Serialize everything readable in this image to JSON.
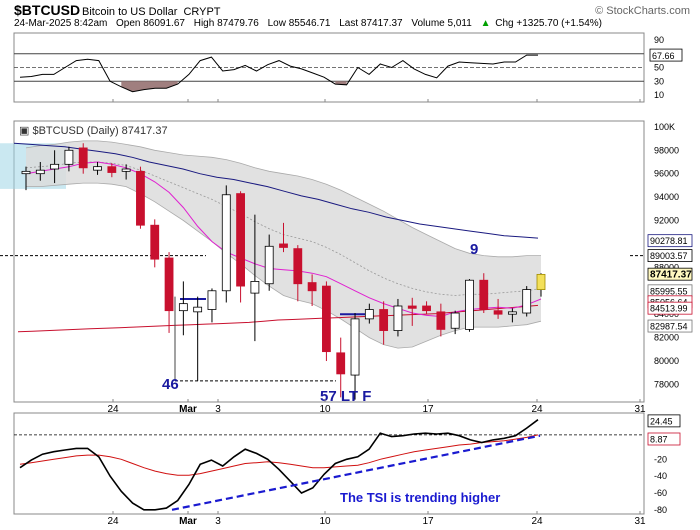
{
  "header": {
    "symbol": "$BTCUSD",
    "name": "Bitcoin to US Dollar",
    "exchange": "CRYPT",
    "watermark": "© StockCharts.com",
    "date_time": "24-Mar-2025 8:42am",
    "open": "Open 86091.67",
    "high": "High 87479.76",
    "low": "Low 85546.71",
    "last": "Last 87417.37",
    "volume": "Volume 5,011",
    "chg": "Chg +1325.70 (+1.54%)",
    "chg_arrow": "▲",
    "chg_color": "#00a000"
  },
  "chart_data": [
    {
      "type": "line",
      "panel": "momentum-oscillator",
      "ylim": [
        0,
        100
      ],
      "ticks": [
        "90",
        "70",
        "50",
        "30",
        "10"
      ],
      "ref_lines": [
        70,
        50,
        30
      ],
      "last_value": "67.66",
      "values": [
        36,
        37,
        40,
        40,
        50,
        60,
        62,
        60,
        30,
        22,
        15,
        18,
        20,
        20,
        26,
        40,
        60,
        65,
        45,
        47,
        53,
        45,
        54,
        60,
        52,
        48,
        42,
        36,
        26,
        25,
        50,
        40,
        55,
        50,
        60,
        48,
        40,
        35,
        52,
        58,
        57,
        56,
        55,
        58,
        58,
        68,
        68
      ]
    },
    {
      "type": "candlestick",
      "panel": "price",
      "label": "$BTCUSD (Daily) 87417.37",
      "ylim": [
        76500,
        100500
      ],
      "ticks": [
        "100K",
        "98000",
        "96000",
        "94000",
        "92000",
        "90000",
        "88000",
        "86000",
        "84000",
        "82000",
        "80000",
        "78000"
      ],
      "x_labels": [
        "24",
        "Mar",
        "3",
        "10",
        "17",
        "24",
        "31"
      ],
      "candles": [
        {
          "o": 96000,
          "h": 96600,
          "l": 94600,
          "c": 96200
        },
        {
          "o": 96000,
          "h": 97000,
          "l": 95400,
          "c": 96300
        },
        {
          "o": 96400,
          "h": 98000,
          "l": 95200,
          "c": 96800
        },
        {
          "o": 96800,
          "h": 98300,
          "l": 96200,
          "c": 98000
        },
        {
          "o": 98200,
          "h": 98600,
          "l": 96000,
          "c": 96500
        },
        {
          "o": 96300,
          "h": 97000,
          "l": 95900,
          "c": 96600
        },
        {
          "o": 96600,
          "h": 96900,
          "l": 95700,
          "c": 96100
        },
        {
          "o": 96200,
          "h": 96800,
          "l": 95500,
          "c": 96400
        },
        {
          "o": 96200,
          "h": 96600,
          "l": 91300,
          "c": 91600
        },
        {
          "o": 91600,
          "h": 92100,
          "l": 88000,
          "c": 88700
        },
        {
          "o": 88800,
          "h": 89300,
          "l": 82400,
          "c": 84300
        },
        {
          "o": 84300,
          "h": 86800,
          "l": 82200,
          "c": 84900
        },
        {
          "o": 84200,
          "h": 85500,
          "l": 78300,
          "c": 84600
        },
        {
          "o": 84400,
          "h": 86200,
          "l": 83300,
          "c": 86000
        },
        {
          "o": 86000,
          "h": 95000,
          "l": 85000,
          "c": 94200
        },
        {
          "o": 94300,
          "h": 94500,
          "l": 85000,
          "c": 86400
        },
        {
          "o": 85800,
          "h": 92500,
          "l": 81700,
          "c": 86800
        },
        {
          "o": 86600,
          "h": 90800,
          "l": 86000,
          "c": 89800
        },
        {
          "o": 90000,
          "h": 91800,
          "l": 89300,
          "c": 89700
        },
        {
          "o": 89600,
          "h": 89900,
          "l": 85100,
          "c": 86600
        },
        {
          "o": 86700,
          "h": 87400,
          "l": 84700,
          "c": 86000
        },
        {
          "o": 86400,
          "h": 86800,
          "l": 80000,
          "c": 80800
        },
        {
          "o": 80700,
          "h": 82000,
          "l": 76900,
          "c": 78900
        },
        {
          "o": 78800,
          "h": 84100,
          "l": 76700,
          "c": 83600
        },
        {
          "o": 83600,
          "h": 84900,
          "l": 83200,
          "c": 84400
        },
        {
          "o": 84400,
          "h": 85100,
          "l": 81400,
          "c": 82600
        },
        {
          "o": 82600,
          "h": 85300,
          "l": 82100,
          "c": 84700
        },
        {
          "o": 84700,
          "h": 85400,
          "l": 83000,
          "c": 84500
        },
        {
          "o": 84700,
          "h": 85100,
          "l": 84000,
          "c": 84300
        },
        {
          "o": 84200,
          "h": 84900,
          "l": 82100,
          "c": 82700
        },
        {
          "o": 82800,
          "h": 84300,
          "l": 82300,
          "c": 84100
        },
        {
          "o": 82700,
          "h": 87000,
          "l": 82500,
          "c": 86900
        },
        {
          "o": 86900,
          "h": 87500,
          "l": 84100,
          "c": 84400
        },
        {
          "o": 84300,
          "h": 85300,
          "l": 83600,
          "c": 84000
        },
        {
          "o": 84000,
          "h": 84500,
          "l": 83300,
          "c": 84200
        },
        {
          "o": 84100,
          "h": 86400,
          "l": 83800,
          "c": 86100
        },
        {
          "o": 86100,
          "h": 87500,
          "l": 85500,
          "c": 87400
        }
      ],
      "ma_long": [
        82500,
        82550,
        82600,
        82650,
        82700,
        82750,
        82800,
        82850,
        82900,
        82950,
        83000,
        83050,
        83100,
        83150,
        83200,
        83250,
        83300,
        83400,
        83500,
        83550,
        83600,
        83650,
        83700,
        83750,
        83800,
        83850,
        83900,
        83950,
        84000,
        84050,
        84150,
        84250,
        84350,
        84450,
        84550,
        84650,
        84750
      ],
      "ma_short": [
        96000,
        96200,
        96400,
        96600,
        96900,
        97000,
        96800,
        96500,
        96000,
        95300,
        94400,
        93100,
        91500,
        90200,
        89300,
        88800,
        88300,
        87900,
        87800,
        87700,
        87500,
        87200,
        86600,
        86000,
        85400,
        84900,
        84500,
        84100,
        83900,
        83800,
        84200,
        84400,
        84500,
        84600,
        84500,
        84800,
        85300
      ],
      "bb_middle": [
        96500,
        96600,
        96700,
        96900,
        97000,
        97000,
        96900,
        96700,
        96300,
        95800,
        95300,
        94800,
        94300,
        93800,
        93200,
        92600,
        91900,
        91300,
        90800,
        90500,
        90200,
        89700,
        89100,
        88400,
        87700,
        87100,
        86600,
        86200,
        85900,
        85700,
        85600,
        85700,
        85700,
        85800,
        85900,
        86000,
        86200
      ],
      "bb_upper": [
        98200,
        98400,
        98500,
        98700,
        98800,
        98800,
        98700,
        98500,
        98300,
        98000,
        97800,
        97600,
        97500,
        97400,
        97200,
        96900,
        96500,
        96200,
        96000,
        95800,
        95500,
        95100,
        94600,
        94000,
        93400,
        92800,
        92100,
        91400,
        90800,
        90200,
        89600,
        89200,
        89000,
        88900,
        88900,
        89000,
        89000
      ],
      "bb_lower": [
        94900,
        94900,
        95000,
        95100,
        95200,
        95200,
        95100,
        94900,
        94300,
        93600,
        92800,
        92000,
        91100,
        90200,
        89200,
        88300,
        87300,
        86400,
        85600,
        85200,
        84900,
        84300,
        83600,
        82800,
        82000,
        81400,
        81100,
        81200,
        81700,
        82200,
        82600,
        82900,
        82900,
        82900,
        83000,
        83100,
        83400
      ],
      "trend_line": [
        98600,
        98500,
        98400,
        98300,
        98100,
        97900,
        97700,
        97400,
        97000,
        96700,
        96400,
        96000,
        95700,
        95500,
        95200,
        94900,
        94500,
        94100,
        93800,
        93400,
        93000,
        92700,
        92300,
        92000,
        91700,
        91500,
        91300,
        91100,
        90900,
        90700,
        90600,
        90500
      ],
      "price_labels": [
        "90278.81",
        "89003.57",
        "87417.37",
        "85995.55",
        "85056.64",
        "84513.99",
        "82987.54"
      ],
      "annotations": [
        "46",
        "57 LT F",
        "9"
      ],
      "ref_levels": [
        89000,
        78300
      ]
    },
    {
      "type": "line",
      "panel": "tsi",
      "ylim": [
        -85,
        35
      ],
      "ticks": [
        "24.45",
        "8.87",
        "-20",
        "-40",
        "-60",
        "-80"
      ],
      "tsi": [
        -30,
        -21,
        -14,
        -11,
        -9,
        -7,
        -7,
        -17,
        -40,
        -58,
        -72,
        -80,
        -80,
        -78,
        -69,
        -50,
        -26,
        -21,
        -28,
        -17,
        -8,
        -13,
        -20,
        -32,
        -46,
        -60,
        -54,
        -38,
        -25,
        -20,
        -17,
        -8,
        11,
        7,
        8,
        10,
        11,
        10,
        11,
        8,
        3,
        0,
        3,
        5,
        8,
        17,
        27
      ],
      "signal": [
        -26,
        -24,
        -22,
        -20,
        -18,
        -16,
        -15,
        -15,
        -17,
        -20,
        -25,
        -30,
        -34,
        -37,
        -39,
        -39,
        -37,
        -34,
        -31,
        -28,
        -25,
        -24,
        -23,
        -24,
        -26,
        -28,
        -30,
        -30,
        -29,
        -28,
        -27,
        -24,
        -20,
        -17,
        -14,
        -11,
        -9,
        -7,
        -5,
        -3,
        -2,
        0,
        1,
        2,
        4,
        6,
        9
      ],
      "trend_annotation": "The TSI is trending higher"
    }
  ]
}
